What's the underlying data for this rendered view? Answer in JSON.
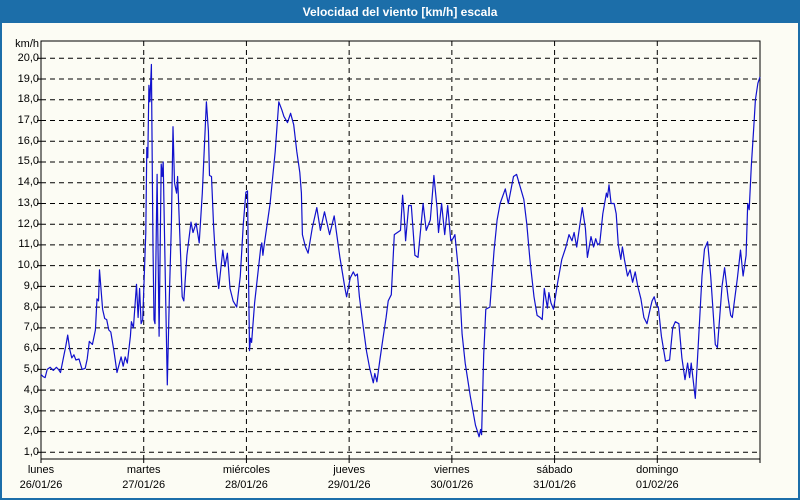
{
  "header": {
    "title": "Velocidad del viento [km/h] escala"
  },
  "colors": {
    "frame": "#1c6ea9",
    "header_bg": "#1c6ea9",
    "header_text": "#ffffff",
    "background": "#fcfcf4",
    "line": "#1111cd",
    "grid": "#000000",
    "plot_border": "#000000",
    "label_text": "#000000"
  },
  "chart_data": {
    "type": "line",
    "title": "Velocidad del viento [km/h] escala",
    "ylabel": "km/h",
    "units": "km/h",
    "grid": "dashed",
    "legend": "none",
    "ylim": [
      0.7,
      20.9
    ],
    "xlim_days": [
      0,
      7
    ],
    "y_axis": {
      "tick_values": [
        20,
        19,
        18,
        17,
        16,
        15,
        14,
        13,
        12,
        11,
        10,
        9,
        8,
        7,
        6,
        5,
        4,
        3,
        2,
        1
      ],
      "tick_labels": [
        "20,0",
        "19,0",
        "18,0",
        "17,0",
        "16,0",
        "15,0",
        "14,0",
        "13,0",
        "12,0",
        "11,0",
        "10,0",
        "9,0",
        "8,0",
        "7,0",
        "6,0",
        "5,0",
        "4,0",
        "3,0",
        "2,0",
        "1,0"
      ]
    },
    "x_axis": {
      "categories": [
        {
          "day": "lunes",
          "date": "26/01/26"
        },
        {
          "day": "martes",
          "date": "27/01/26"
        },
        {
          "day": "miércoles",
          "date": "28/01/26"
        },
        {
          "day": "jueves",
          "date": "29/01/26"
        },
        {
          "day": "viernes",
          "date": "30/01/26"
        },
        {
          "day": "sábado",
          "date": "31/01/26"
        },
        {
          "day": "domingo",
          "date": "01/02/26"
        }
      ]
    },
    "series": [
      {
        "name": "Velocidad del viento [km/h]",
        "color": "#1111cd",
        "points": [
          [
            0.0,
            4.75
          ],
          [
            0.02,
            4.65
          ],
          [
            0.04,
            4.6
          ],
          [
            0.06,
            5.0
          ],
          [
            0.09,
            5.1
          ],
          [
            0.12,
            4.95
          ],
          [
            0.15,
            5.1
          ],
          [
            0.17,
            5.0
          ],
          [
            0.19,
            4.85
          ],
          [
            0.22,
            5.6
          ],
          [
            0.24,
            6.1
          ],
          [
            0.26,
            6.65
          ],
          [
            0.28,
            5.95
          ],
          [
            0.3,
            5.55
          ],
          [
            0.32,
            5.7
          ],
          [
            0.34,
            5.45
          ],
          [
            0.37,
            5.5
          ],
          [
            0.4,
            5.0
          ],
          [
            0.43,
            5.05
          ],
          [
            0.45,
            5.5
          ],
          [
            0.47,
            6.35
          ],
          [
            0.5,
            6.2
          ],
          [
            0.53,
            6.9
          ],
          [
            0.545,
            8.4
          ],
          [
            0.56,
            8.3
          ],
          [
            0.57,
            9.8
          ],
          [
            0.6,
            7.9
          ],
          [
            0.62,
            7.45
          ],
          [
            0.64,
            7.4
          ],
          [
            0.66,
            6.9
          ],
          [
            0.68,
            6.8
          ],
          [
            0.71,
            5.9
          ],
          [
            0.74,
            4.85
          ],
          [
            0.78,
            5.6
          ],
          [
            0.8,
            5.15
          ],
          [
            0.82,
            5.6
          ],
          [
            0.84,
            5.3
          ],
          [
            0.87,
            6.6
          ],
          [
            0.88,
            7.3
          ],
          [
            0.9,
            7.0
          ],
          [
            0.93,
            9.1
          ],
          [
            0.945,
            7.5
          ],
          [
            0.96,
            8.9
          ],
          [
            0.975,
            7.2
          ],
          [
            0.99,
            7.4
          ],
          [
            1.02,
            11.6
          ],
          [
            1.03,
            15.7
          ],
          [
            1.04,
            15.2
          ],
          [
            1.05,
            18.7
          ],
          [
            1.06,
            17.9
          ],
          [
            1.075,
            19.7
          ],
          [
            1.085,
            14.0
          ],
          [
            1.09,
            10.9
          ],
          [
            1.1,
            7.4
          ],
          [
            1.11,
            7.2
          ],
          [
            1.13,
            14.4
          ],
          [
            1.15,
            6.6
          ],
          [
            1.17,
            14.9
          ],
          [
            1.18,
            14.3
          ],
          [
            1.19,
            15.0
          ],
          [
            1.21,
            9.4
          ],
          [
            1.23,
            4.25
          ],
          [
            1.25,
            8.6
          ],
          [
            1.27,
            12.0
          ],
          [
            1.285,
            16.7
          ],
          [
            1.3,
            14.0
          ],
          [
            1.32,
            13.5
          ],
          [
            1.33,
            14.3
          ],
          [
            1.355,
            11.0
          ],
          [
            1.375,
            8.5
          ],
          [
            1.39,
            8.3
          ],
          [
            1.42,
            10.5
          ],
          [
            1.46,
            12.1
          ],
          [
            1.48,
            11.6
          ],
          [
            1.51,
            12.05
          ],
          [
            1.54,
            11.1
          ],
          [
            1.57,
            13.5
          ],
          [
            1.61,
            17.9
          ],
          [
            1.63,
            16.5
          ],
          [
            1.64,
            14.35
          ],
          [
            1.66,
            14.3
          ],
          [
            1.68,
            11.9
          ],
          [
            1.7,
            10.3
          ],
          [
            1.73,
            8.9
          ],
          [
            1.77,
            10.75
          ],
          [
            1.79,
            9.95
          ],
          [
            1.815,
            10.6
          ],
          [
            1.84,
            8.9
          ],
          [
            1.87,
            8.3
          ],
          [
            1.905,
            8.0
          ],
          [
            1.94,
            9.5
          ],
          [
            1.97,
            12.0
          ],
          [
            1.995,
            13.55
          ],
          [
            2.01,
            13.6
          ],
          [
            2.03,
            5.9
          ],
          [
            2.04,
            6.5
          ],
          [
            2.05,
            6.3
          ],
          [
            2.08,
            8.2
          ],
          [
            2.14,
            10.9
          ],
          [
            2.15,
            11.1
          ],
          [
            2.16,
            10.5
          ],
          [
            2.17,
            10.9
          ],
          [
            2.23,
            13.0
          ],
          [
            2.28,
            15.5
          ],
          [
            2.315,
            17.9
          ],
          [
            2.345,
            17.5
          ],
          [
            2.365,
            17.2
          ],
          [
            2.4,
            16.9
          ],
          [
            2.43,
            17.35
          ],
          [
            2.46,
            16.8
          ],
          [
            2.49,
            15.5
          ],
          [
            2.52,
            14.5
          ],
          [
            2.535,
            13.5
          ],
          [
            2.545,
            11.5
          ],
          [
            2.575,
            10.9
          ],
          [
            2.6,
            10.6
          ],
          [
            2.64,
            11.8
          ],
          [
            2.685,
            12.8
          ],
          [
            2.72,
            11.7
          ],
          [
            2.76,
            12.6
          ],
          [
            2.81,
            11.5
          ],
          [
            2.855,
            12.4
          ],
          [
            2.91,
            10.4
          ],
          [
            2.96,
            8.9
          ],
          [
            2.975,
            8.5
          ],
          [
            3.01,
            9.4
          ],
          [
            3.04,
            9.7
          ],
          [
            3.06,
            9.5
          ],
          [
            3.08,
            9.6
          ],
          [
            3.1,
            8.5
          ],
          [
            3.14,
            6.95
          ],
          [
            3.17,
            5.85
          ],
          [
            3.2,
            5.05
          ],
          [
            3.235,
            4.35
          ],
          [
            3.25,
            4.8
          ],
          [
            3.27,
            4.4
          ],
          [
            3.3,
            5.5
          ],
          [
            3.33,
            6.5
          ],
          [
            3.36,
            7.5
          ],
          [
            3.38,
            8.3
          ],
          [
            3.41,
            8.6
          ],
          [
            3.44,
            11.5
          ],
          [
            3.47,
            11.6
          ],
          [
            3.5,
            11.7
          ],
          [
            3.52,
            13.4
          ],
          [
            3.535,
            12.5
          ],
          [
            3.55,
            11.2
          ],
          [
            3.58,
            12.9
          ],
          [
            3.605,
            12.9
          ],
          [
            3.64,
            10.5
          ],
          [
            3.67,
            10.4
          ],
          [
            3.72,
            13.0
          ],
          [
            3.75,
            11.7
          ],
          [
            3.79,
            12.2
          ],
          [
            3.825,
            14.35
          ],
          [
            3.855,
            12.8
          ],
          [
            3.87,
            11.6
          ],
          [
            3.9,
            13.0
          ],
          [
            3.93,
            11.5
          ],
          [
            3.96,
            12.9
          ],
          [
            3.99,
            11.2
          ],
          [
            4.01,
            11.3
          ],
          [
            4.03,
            11.5
          ],
          [
            4.07,
            9.5
          ],
          [
            4.1,
            6.7
          ],
          [
            4.13,
            5.3
          ],
          [
            4.18,
            3.7
          ],
          [
            4.23,
            2.3
          ],
          [
            4.25,
            2.0
          ],
          [
            4.265,
            1.75
          ],
          [
            4.28,
            2.1
          ],
          [
            4.29,
            1.85
          ],
          [
            4.31,
            5.7
          ],
          [
            4.33,
            7.9
          ],
          [
            4.37,
            8.0
          ],
          [
            4.41,
            10.7
          ],
          [
            4.44,
            12.2
          ],
          [
            4.47,
            13.0
          ],
          [
            4.52,
            13.7
          ],
          [
            4.55,
            13.0
          ],
          [
            4.6,
            14.3
          ],
          [
            4.63,
            14.4
          ],
          [
            4.66,
            13.9
          ],
          [
            4.7,
            13.2
          ],
          [
            4.73,
            12.0
          ],
          [
            4.76,
            10.3
          ],
          [
            4.8,
            8.5
          ],
          [
            4.83,
            7.6
          ],
          [
            4.86,
            7.5
          ],
          [
            4.88,
            7.4
          ],
          [
            4.9,
            8.9
          ],
          [
            4.93,
            7.95
          ],
          [
            4.945,
            8.7
          ],
          [
            4.965,
            8.2
          ],
          [
            4.99,
            7.9
          ],
          [
            5.03,
            9.2
          ],
          [
            5.07,
            10.3
          ],
          [
            5.11,
            10.9
          ],
          [
            5.14,
            11.5
          ],
          [
            5.17,
            11.2
          ],
          [
            5.19,
            11.6
          ],
          [
            5.215,
            10.9
          ],
          [
            5.27,
            12.8
          ],
          [
            5.3,
            11.8
          ],
          [
            5.32,
            10.4
          ],
          [
            5.355,
            11.4
          ],
          [
            5.38,
            10.9
          ],
          [
            5.4,
            11.3
          ],
          [
            5.42,
            11.0
          ],
          [
            5.44,
            11.1
          ],
          [
            5.47,
            12.5
          ],
          [
            5.505,
            13.5
          ],
          [
            5.515,
            13.3
          ],
          [
            5.53,
            13.9
          ],
          [
            5.55,
            13.0
          ],
          [
            5.58,
            13.0
          ],
          [
            5.6,
            12.5
          ],
          [
            5.62,
            11.0
          ],
          [
            5.645,
            10.3
          ],
          [
            5.66,
            10.9
          ],
          [
            5.68,
            10.3
          ],
          [
            5.71,
            9.5
          ],
          [
            5.735,
            9.8
          ],
          [
            5.76,
            9.2
          ],
          [
            5.785,
            9.7
          ],
          [
            5.81,
            9.0
          ],
          [
            5.84,
            8.4
          ],
          [
            5.87,
            7.5
          ],
          [
            5.9,
            7.2
          ],
          [
            5.93,
            7.9
          ],
          [
            5.95,
            8.3
          ],
          [
            5.97,
            8.5
          ],
          [
            5.99,
            8.1
          ],
          [
            6.01,
            8.0
          ],
          [
            6.04,
            6.6
          ],
          [
            6.08,
            5.4
          ],
          [
            6.12,
            5.45
          ],
          [
            6.15,
            7.0
          ],
          [
            6.175,
            7.3
          ],
          [
            6.21,
            7.2
          ],
          [
            6.24,
            5.55
          ],
          [
            6.27,
            4.5
          ],
          [
            6.295,
            5.3
          ],
          [
            6.315,
            4.6
          ],
          [
            6.33,
            5.3
          ],
          [
            6.37,
            3.6
          ],
          [
            6.4,
            6.3
          ],
          [
            6.435,
            9.5
          ],
          [
            6.46,
            10.8
          ],
          [
            6.49,
            11.15
          ],
          [
            6.52,
            9.5
          ],
          [
            6.565,
            6.2
          ],
          [
            6.585,
            6.05
          ],
          [
            6.63,
            9.0
          ],
          [
            6.655,
            9.9
          ],
          [
            6.69,
            8.4
          ],
          [
            6.715,
            7.6
          ],
          [
            6.73,
            7.5
          ],
          [
            6.78,
            9.4
          ],
          [
            6.81,
            10.75
          ],
          [
            6.835,
            9.5
          ],
          [
            6.865,
            10.5
          ],
          [
            6.88,
            13.0
          ],
          [
            6.895,
            12.7
          ],
          [
            6.915,
            14.8
          ],
          [
            6.94,
            16.7
          ],
          [
            6.955,
            18.0
          ],
          [
            6.98,
            18.8
          ],
          [
            7.0,
            19.1
          ]
        ]
      }
    ]
  }
}
